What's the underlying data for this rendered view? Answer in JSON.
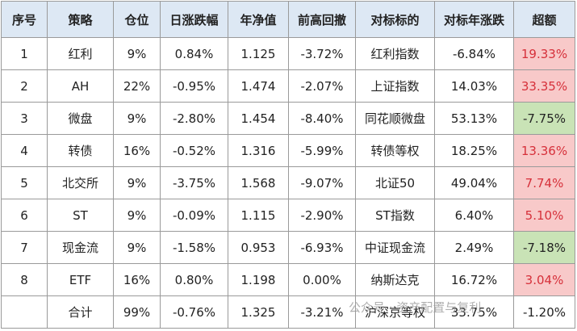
{
  "table": {
    "columns": [
      "序号",
      "策略",
      "仓位",
      "日涨跌幅",
      "年净值",
      "前高回撤",
      "对标标的",
      "对标年涨跌",
      "超额"
    ],
    "rows": [
      [
        "1",
        "红利",
        "9%",
        "0.84%",
        "1.125",
        "-3.72%",
        "红利指数",
        "-6.84%",
        "19.33%"
      ],
      [
        "2",
        "AH",
        "22%",
        "-0.95%",
        "1.474",
        "-2.07%",
        "上证指数",
        "14.03%",
        "33.35%"
      ],
      [
        "3",
        "微盘",
        "9%",
        "-2.80%",
        "1.454",
        "-8.40%",
        "同花顺微盘",
        "53.13%",
        "-7.75%"
      ],
      [
        "4",
        "转债",
        "16%",
        "-0.52%",
        "1.316",
        "-5.99%",
        "转债等权",
        "18.25%",
        "13.36%"
      ],
      [
        "5",
        "北交所",
        "9%",
        "-3.75%",
        "1.568",
        "-9.07%",
        "北证50",
        "49.04%",
        "7.74%"
      ],
      [
        "6",
        "ST",
        "9%",
        "-0.09%",
        "1.115",
        "-2.90%",
        "ST指数",
        "6.40%",
        "5.10%"
      ],
      [
        "7",
        "现金流",
        "9%",
        "-1.58%",
        "0.953",
        "-6.93%",
        "中证现金流",
        "2.49%",
        "-7.18%"
      ],
      [
        "8",
        "ETF",
        "16%",
        "0.80%",
        "1.198",
        "0.00%",
        "纳斯达克",
        "16.72%",
        "3.04%"
      ],
      [
        null,
        "合计",
        "99%",
        "-0.76%",
        "1.325",
        "-3.21%",
        "沪深京等权",
        "33.75%",
        "-1.20%"
      ]
    ]
  },
  "watermark": "公众号 · 资产配置与复利"
}
